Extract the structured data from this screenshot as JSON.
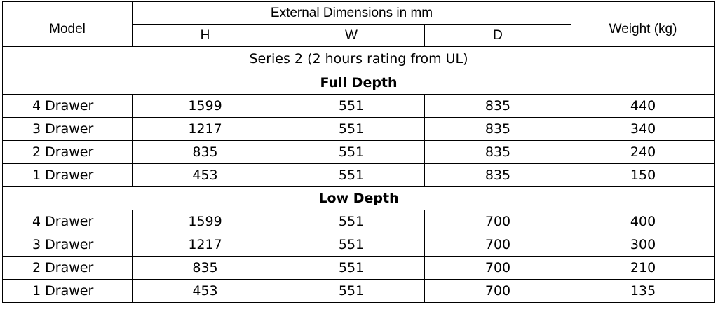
{
  "header": {
    "model": "Model",
    "group": "External Dimensions in mm",
    "h": "H",
    "w": "W",
    "d": "D",
    "weight": "Weight (kg)"
  },
  "series_title": "Series 2 (2 hours rating from UL)",
  "sections": [
    {
      "title": "Full Depth",
      "rows": [
        {
          "model": "4 Drawer",
          "h": "1599",
          "w": "551",
          "d": "835",
          "weight": "440"
        },
        {
          "model": "3 Drawer",
          "h": "1217",
          "w": "551",
          "d": "835",
          "weight": "340"
        },
        {
          "model": "2 Drawer",
          "h": "835",
          "w": "551",
          "d": "835",
          "weight": "240"
        },
        {
          "model": "1 Drawer",
          "h": "453",
          "w": "551",
          "d": "835",
          "weight": "150"
        }
      ]
    },
    {
      "title": "Low Depth",
      "rows": [
        {
          "model": "4 Drawer",
          "h": "1599",
          "w": "551",
          "d": "700",
          "weight": "400"
        },
        {
          "model": "3 Drawer",
          "h": "1217",
          "w": "551",
          "d": "700",
          "weight": "300"
        },
        {
          "model": "2 Drawer",
          "h": "835",
          "w": "551",
          "d": "700",
          "weight": "210"
        },
        {
          "model": "1 Drawer",
          "h": "453",
          "w": "551",
          "d": "700",
          "weight": "135"
        }
      ]
    }
  ]
}
